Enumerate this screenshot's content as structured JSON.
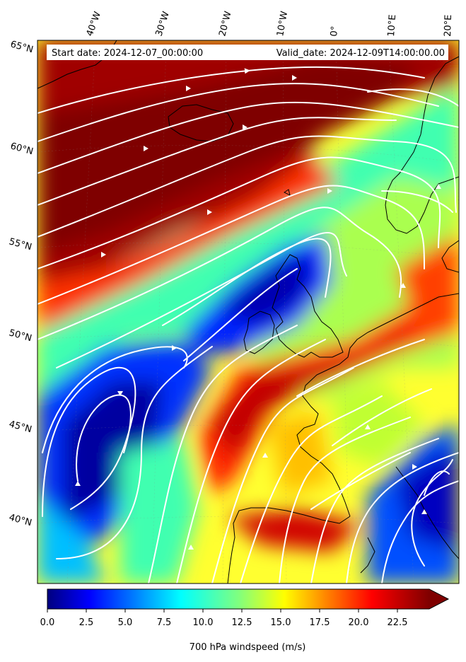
{
  "title_box": {
    "start_label": "Start date: 2024-12-07_00:00:00",
    "valid_label": "Valid_date: 2024-12-09T14:00:00.00"
  },
  "longitude_labels": [
    "40°W",
    "30°W",
    "20°W",
    "10°W",
    "0°",
    "10°E",
    "20°E"
  ],
  "latitude_labels": [
    "65°N",
    "60°N",
    "55°N",
    "50°N",
    "45°N",
    "40°N"
  ],
  "colorbar": {
    "ticks": [
      "0.0",
      "2.5",
      "5.0",
      "7.5",
      "10.0",
      "12.5",
      "15.0",
      "17.5",
      "20.0",
      "22.5"
    ],
    "label": "700 hPa windspeed (m/s)",
    "colormap": "jet",
    "extend": "max"
  },
  "colors": {
    "streamlines": "#ffffff",
    "coastlines": "#000000",
    "jet_low": "#00007f",
    "jet_high": "#7f0000"
  }
}
